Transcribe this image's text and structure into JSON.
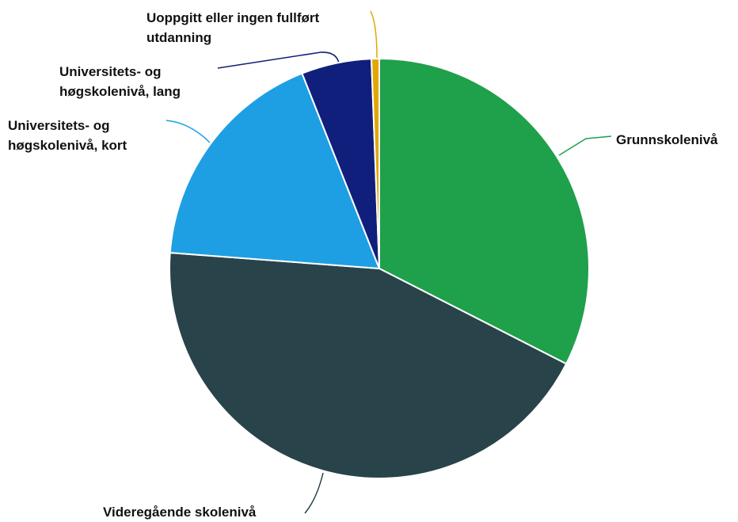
{
  "chart_data": {
    "type": "pie",
    "categories": [
      "Grunnskolenivå",
      "Videregående skolenivå",
      "Universitets- og høgskolenivå, kort",
      "Universitets- og høgskolenivå, lang",
      "Uoppgitt eller ingen fullført utdanning"
    ],
    "values": [
      32.5,
      43.7,
      17.8,
      5.4,
      0.6
    ],
    "colors": [
      "#1fa04a",
      "#28434a",
      "#1e9fe3",
      "#101f7c",
      "#e0a800"
    ]
  }
}
